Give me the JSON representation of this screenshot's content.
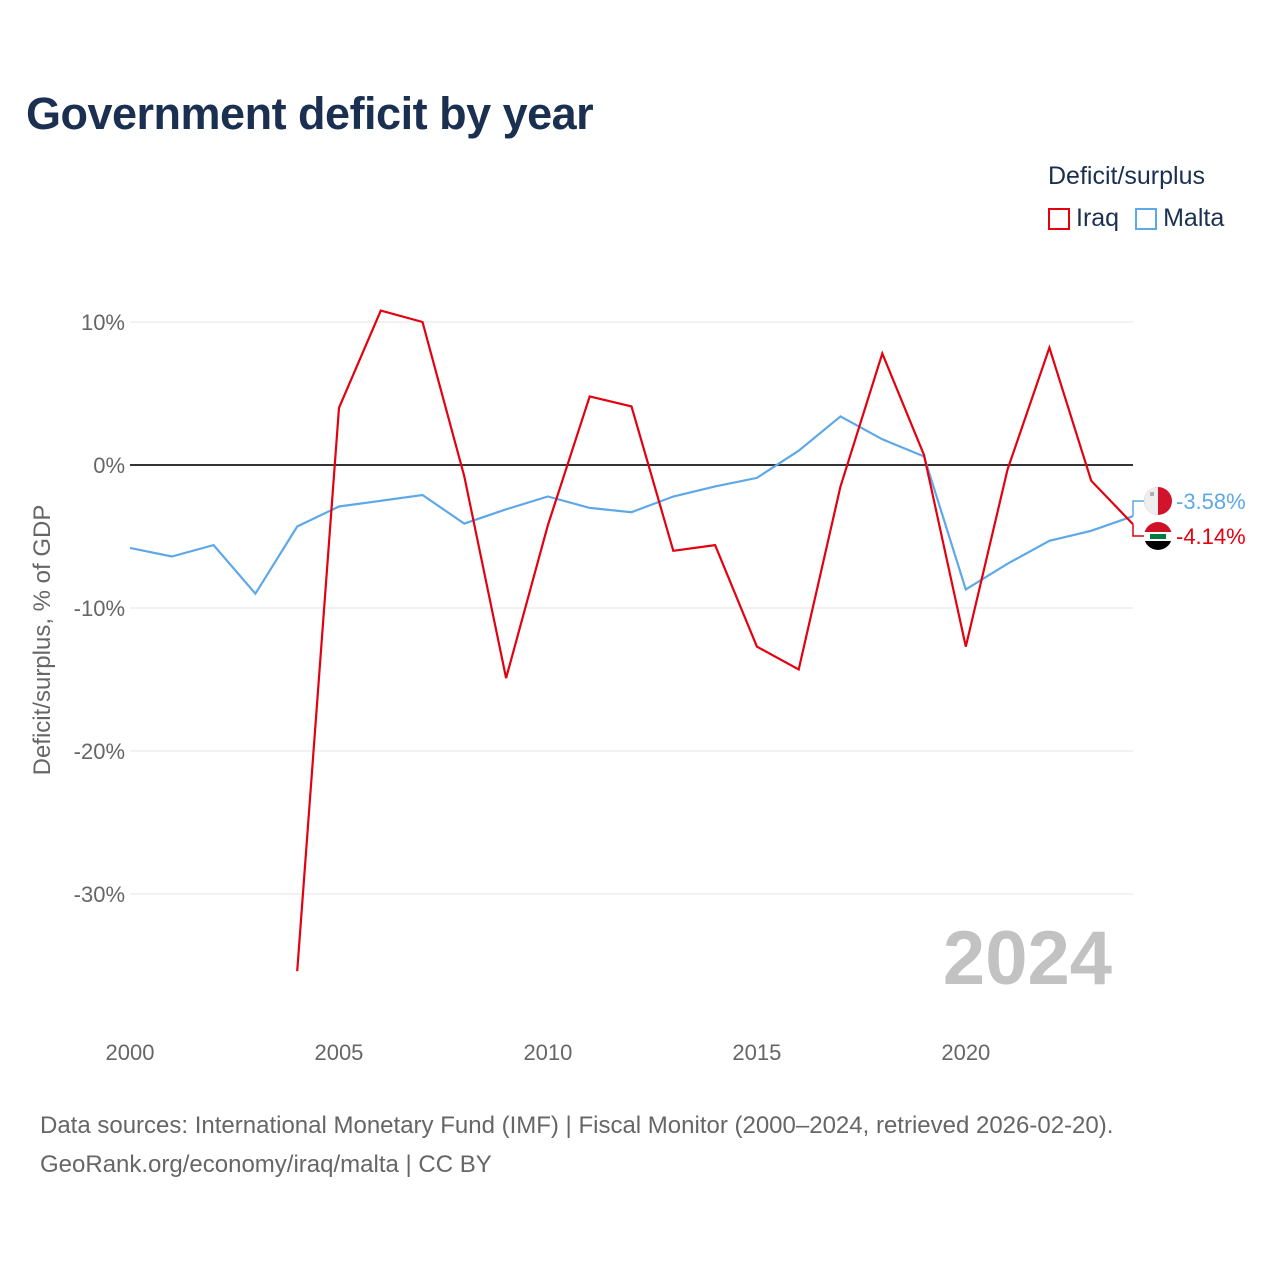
{
  "title": "Government deficit by year",
  "legend": {
    "title": "Deficit/surplus",
    "items": [
      {
        "label": "Iraq",
        "color": "#e3000f"
      },
      {
        "label": "Malta",
        "color": "#5ea8e8"
      }
    ]
  },
  "footer": {
    "line1": "Data sources: International Monetary Fund (IMF) | Fiscal Monitor (2000–2024, retrieved 2026-02-20).",
    "line2": "GeoRank.org/economy/iraq/malta | CC BY"
  },
  "chart_data": {
    "type": "line",
    "title": "Government deficit by year",
    "xlabel": "",
    "ylabel": "Deficit/surplus, % of GDP",
    "xlim": [
      2000,
      2024
    ],
    "ylim": [
      -38,
      13
    ],
    "x_ticks": [
      2000,
      2005,
      2010,
      2015,
      2020
    ],
    "y_ticks": [
      10,
      0,
      -10,
      -20,
      -30
    ],
    "tick_suffix": "%",
    "watermark_year": "2024",
    "series": [
      {
        "name": "Iraq",
        "color": "#e3000f",
        "end_label": "-4.14%",
        "x": [
          2004,
          2005,
          2006,
          2007,
          2008,
          2009,
          2010,
          2011,
          2012,
          2013,
          2014,
          2015,
          2016,
          2017,
          2018,
          2019,
          2020,
          2021,
          2022,
          2023,
          2024
        ],
        "values": [
          -35.4,
          4.0,
          10.8,
          10.0,
          -0.8,
          -14.9,
          -4.2,
          4.8,
          4.1,
          -6.0,
          -5.6,
          -12.7,
          -14.3,
          -1.5,
          7.8,
          0.7,
          -12.7,
          -0.3,
          8.2,
          -1.1,
          -4.14
        ]
      },
      {
        "name": "Malta",
        "color": "#5ea8e8",
        "end_label": "-3.58%",
        "x": [
          2000,
          2001,
          2002,
          2003,
          2004,
          2005,
          2006,
          2007,
          2008,
          2009,
          2010,
          2011,
          2012,
          2013,
          2014,
          2015,
          2016,
          2017,
          2018,
          2019,
          2020,
          2021,
          2022,
          2023,
          2024
        ],
        "values": [
          -5.8,
          -6.4,
          -5.6,
          -9.0,
          -4.3,
          -2.9,
          -2.5,
          -2.1,
          -4.1,
          -3.1,
          -2.2,
          -3.0,
          -3.3,
          -2.2,
          -1.5,
          -0.9,
          1.0,
          3.4,
          1.8,
          0.6,
          -8.7,
          -6.9,
          -5.3,
          -4.6,
          -3.58
        ]
      }
    ]
  }
}
